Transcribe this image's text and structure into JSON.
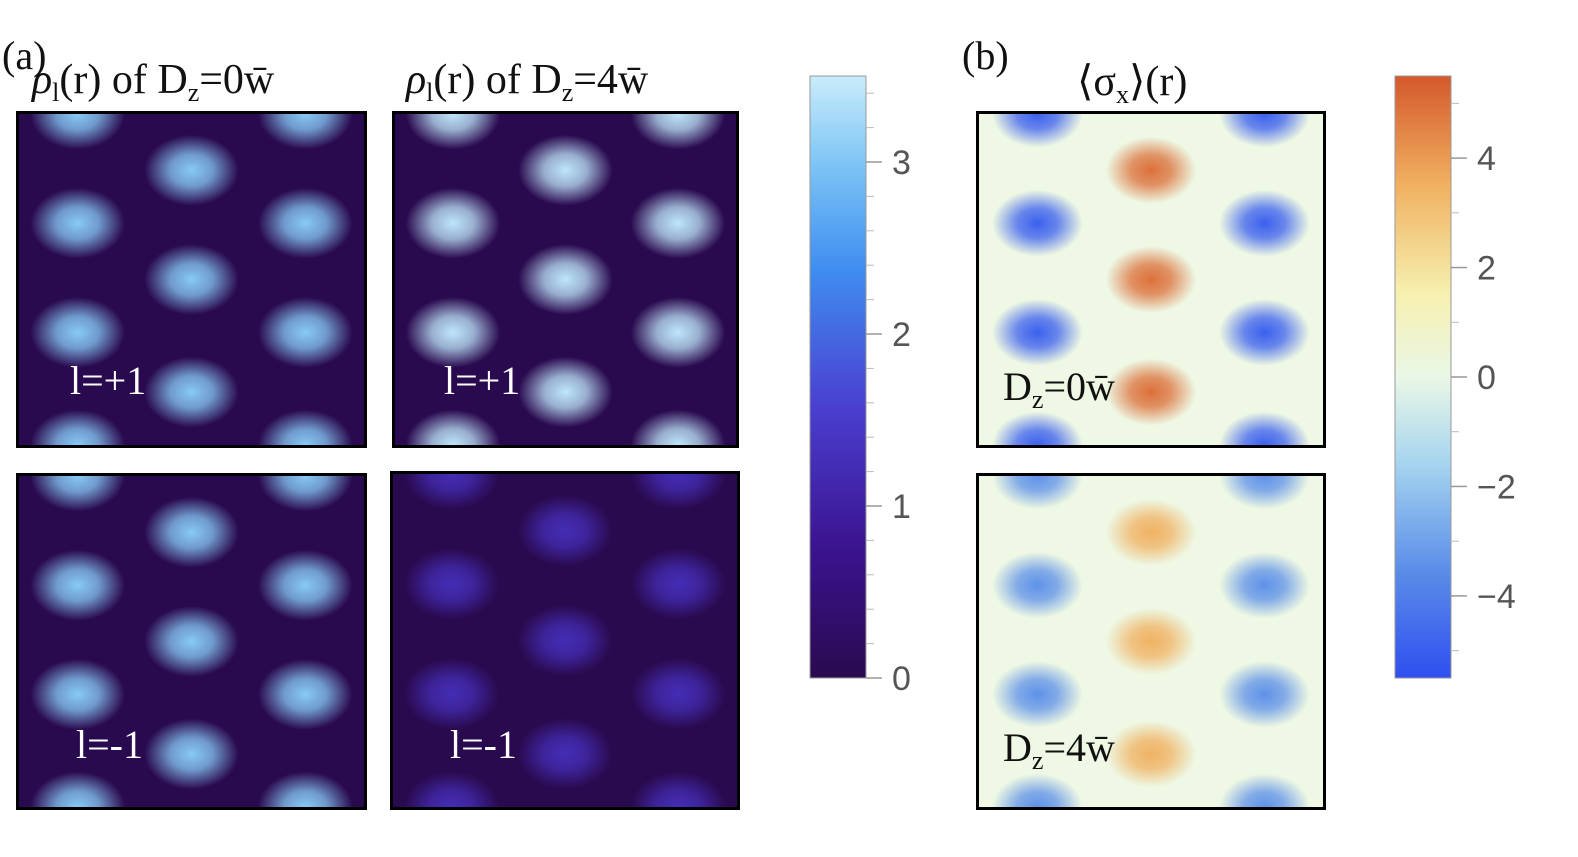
{
  "labels": {
    "panel_a": "(a)",
    "panel_b": "(b)"
  },
  "titles": {
    "a1": {
      "rho": "ρ",
      "sub": "l",
      "pre": "(r) of D",
      "zsub": "z",
      "post": "=0w̄"
    },
    "a2": {
      "rho": "ρ",
      "sub": "l",
      "pre": "(r) of D",
      "zsub": "z",
      "post": "=4w̄"
    },
    "b": {
      "open": "⟨σ",
      "sub": "x",
      "close": "⟩(r)"
    }
  },
  "chart_data": [
    {
      "type": "heatmap",
      "panel": "(a)",
      "colormap": [
        "#2a0a4f",
        "#3b1490",
        "#4a3fd0",
        "#3f8ef0",
        "#7cc4f5",
        "#c9ecfb"
      ],
      "colorbar": {
        "range": [
          0,
          3.5
        ],
        "ticks": [
          0,
          1,
          2,
          3
        ],
        "tick_labels": [
          "0",
          "1",
          "2",
          "3"
        ]
      },
      "maps": [
        {
          "title": "ρl(r) of Dz=0w̄",
          "label": "l=+1",
          "peak": 2.9
        },
        {
          "title": "ρl(r) of Dz=4w̄",
          "label": "l=+1",
          "peak": 3.4
        },
        {
          "title": "ρl(r) of Dz=0w̄",
          "label": "l=-1",
          "peak": 2.9
        },
        {
          "title": "ρl(r) of Dz=4w̄",
          "label": "l=-1",
          "peak": 1.1
        }
      ]
    },
    {
      "type": "heatmap",
      "panel": "(b)",
      "title": "⟨σx⟩(r)",
      "colormap": [
        "#2f4ff0",
        "#5b8ee8",
        "#a8d6ef",
        "#eaf7e6",
        "#f6f0b0",
        "#f0b060",
        "#d4582c"
      ],
      "colorbar": {
        "range": [
          -5.5,
          5.5
        ],
        "ticks": [
          -4,
          -2,
          0,
          2,
          4
        ],
        "tick_labels": [
          "−4",
          "−2",
          "0",
          "2",
          "4"
        ]
      },
      "maps": [
        {
          "label": "Dz=0w̄",
          "peak_positive": 5.0,
          "peak_negative": -5.0
        },
        {
          "label": "Dz=4w̄",
          "peak_positive": 3.6,
          "peak_negative": -3.6
        }
      ]
    }
  ],
  "map_labels": {
    "a_top_left": "l=+1",
    "a_top_right": "l=+1",
    "a_bottom_left": "l=-1",
    "a_bottom_right": "l=-1",
    "b_top": {
      "pre": "D",
      "sub": "z",
      "post": "=0w̄"
    },
    "b_bottom": {
      "pre": "D",
      "sub": "z",
      "post": "=4w̄"
    }
  }
}
